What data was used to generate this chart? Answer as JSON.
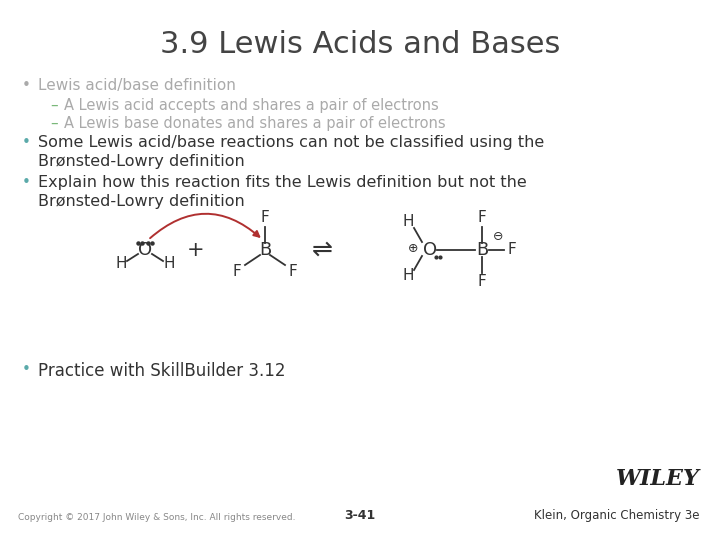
{
  "title": "3.9 Lewis Acids and Bases",
  "title_fontsize": 22,
  "title_color": "#444444",
  "bg_color": "#ffffff",
  "bullet_color": "#333333",
  "bullet_dot_color": "#aaaaaa",
  "bullet_dot_active": "#5baaaa",
  "sub_dash_color": "#7ab87a",
  "sub_text_color": "#aaaaaa",
  "bullet1_text": "Lewis acid/base definition",
  "sub1_text": "A Lewis acid accepts and shares a pair of electrons",
  "sub2_text": "A Lewis base donates and shares a pair of electrons",
  "bullet2_line1": "Some Lewis acid/base reactions can not be classified using the",
  "bullet2_line2": "Brønsted-Lowry definition",
  "bullet3_line1": "Explain how this reaction fits the Lewis definition but not the",
  "bullet3_line2": "Brønsted-Lowry definition",
  "bullet4_text": "Practice with SkillBuilder 3.12",
  "footer_left": "Copyright © 2017 John Wiley & Sons, Inc. All rights reserved.",
  "footer_center": "3-41",
  "footer_right": "Klein, Organic Chemistry 3e",
  "wiley_text": "WILEY",
  "arrow_color": "#b03030",
  "bond_color": "#333333",
  "text_color_normal": "#333333"
}
